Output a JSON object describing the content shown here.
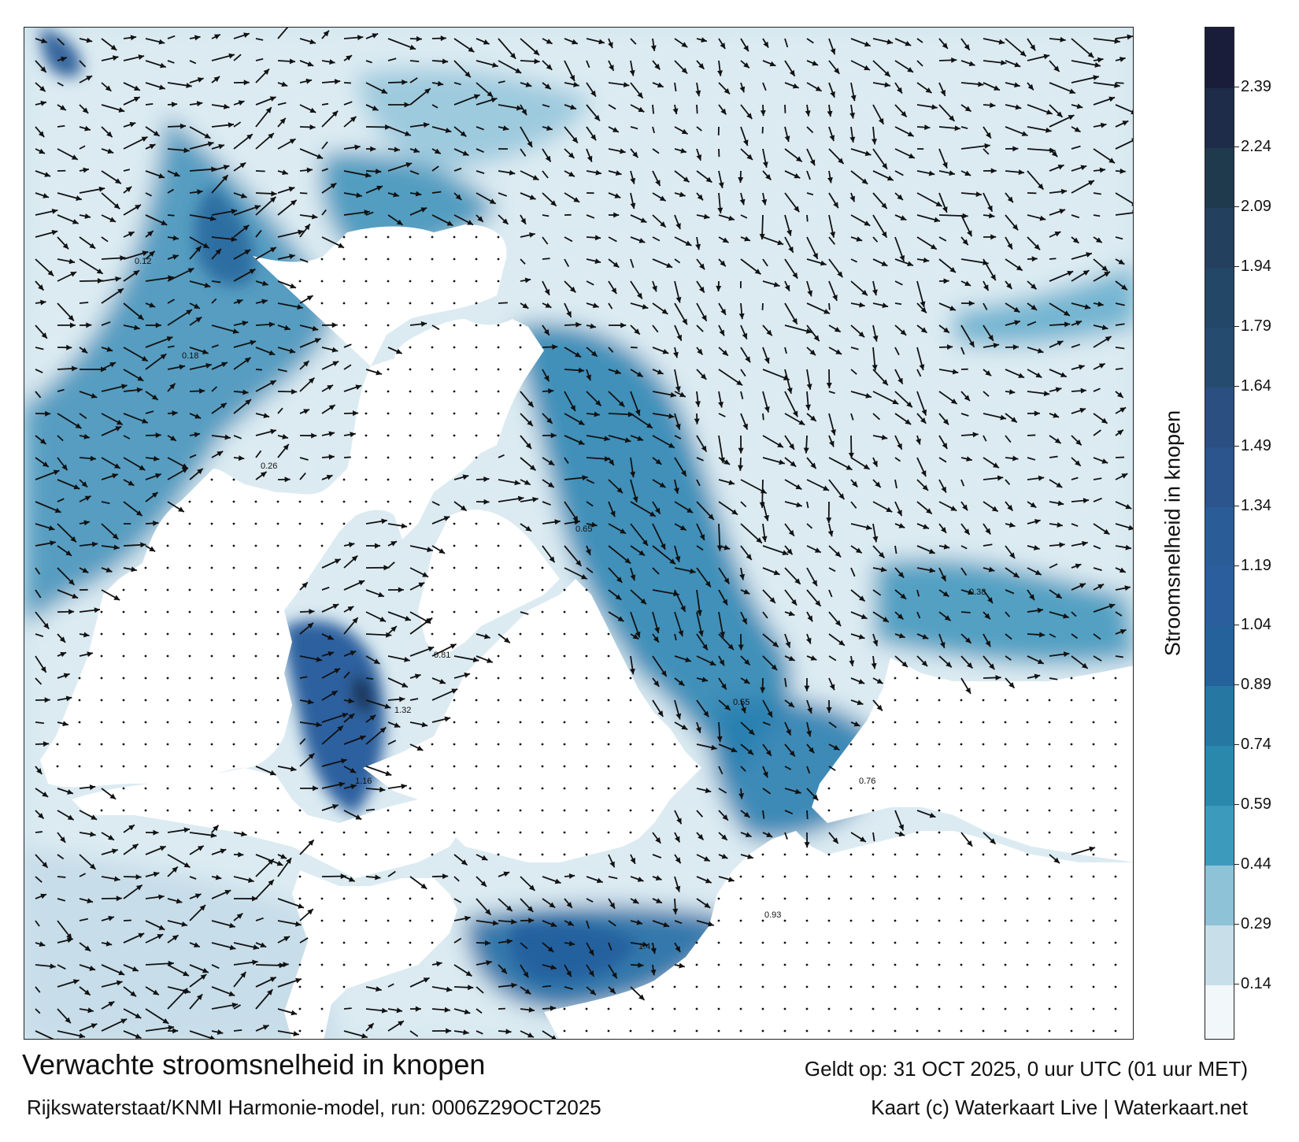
{
  "map": {
    "title": "Verwachte stroomsnelheid in knopen",
    "valid_time": "Geldt op: 31 OCT 2025, 0 uur UTC (01 uur MET)",
    "model_run": "Rijkswaterstaat/KNMI Harmonie-model, run: 0006Z29OCT2025",
    "credit": "Kaart (c) Waterkaart Live | Waterkaart.net",
    "colors": {
      "land": "#ffffff",
      "frame": "#222222",
      "arrow": "#111111"
    },
    "sample_labels": [
      {
        "text": "1.16",
        "name": "speed-label"
      },
      {
        "text": "1.32",
        "name": "speed-label"
      },
      {
        "text": "1.41",
        "name": "speed-label"
      },
      {
        "text": "0.93",
        "name": "speed-label"
      },
      {
        "text": "0.81",
        "name": "speed-label"
      },
      {
        "text": "0.76",
        "name": "speed-label"
      },
      {
        "text": "0.65",
        "name": "speed-label"
      },
      {
        "text": "0.55",
        "name": "speed-label"
      },
      {
        "text": "0.38",
        "name": "speed-label"
      },
      {
        "text": "0.26",
        "name": "speed-label"
      },
      {
        "text": "0.18",
        "name": "speed-label"
      },
      {
        "text": "0.12",
        "name": "speed-label"
      }
    ]
  },
  "colorbar": {
    "label": "Stroomsnelheid in knopen",
    "min": 0,
    "max": 2.54,
    "ticks": [
      "0.14",
      "0.29",
      "0.44",
      "0.59",
      "0.74",
      "0.89",
      "1.04",
      "1.19",
      "1.34",
      "1.49",
      "1.64",
      "1.79",
      "1.94",
      "2.09",
      "2.24",
      "2.39"
    ],
    "bands": [
      {
        "from": 0.0,
        "to": 0.14,
        "color": "#f2f7fa"
      },
      {
        "from": 0.14,
        "to": 0.29,
        "color": "#c8dfe9"
      },
      {
        "from": 0.29,
        "to": 0.44,
        "color": "#8ec2d7"
      },
      {
        "from": 0.44,
        "to": 0.59,
        "color": "#3c9bbd"
      },
      {
        "from": 0.59,
        "to": 0.74,
        "color": "#2a88ad"
      },
      {
        "from": 0.74,
        "to": 0.89,
        "color": "#2678a3"
      },
      {
        "from": 0.89,
        "to": 1.04,
        "color": "#25619a"
      },
      {
        "from": 1.04,
        "to": 1.19,
        "color": "#2a5e9c"
      },
      {
        "from": 1.19,
        "to": 1.34,
        "color": "#2a5d98"
      },
      {
        "from": 1.34,
        "to": 1.49,
        "color": "#2b558c"
      },
      {
        "from": 1.49,
        "to": 1.64,
        "color": "#2b4f80"
      },
      {
        "from": 1.64,
        "to": 1.79,
        "color": "#254b6e"
      },
      {
        "from": 1.79,
        "to": 1.94,
        "color": "#234767"
      },
      {
        "from": 1.94,
        "to": 2.09,
        "color": "#24405f"
      },
      {
        "from": 2.09,
        "to": 2.24,
        "color": "#1f3a4d"
      },
      {
        "from": 2.24,
        "to": 2.39,
        "color": "#1e2c4a"
      },
      {
        "from": 2.39,
        "to": 2.54,
        "color": "#1a1d3a"
      }
    ]
  }
}
